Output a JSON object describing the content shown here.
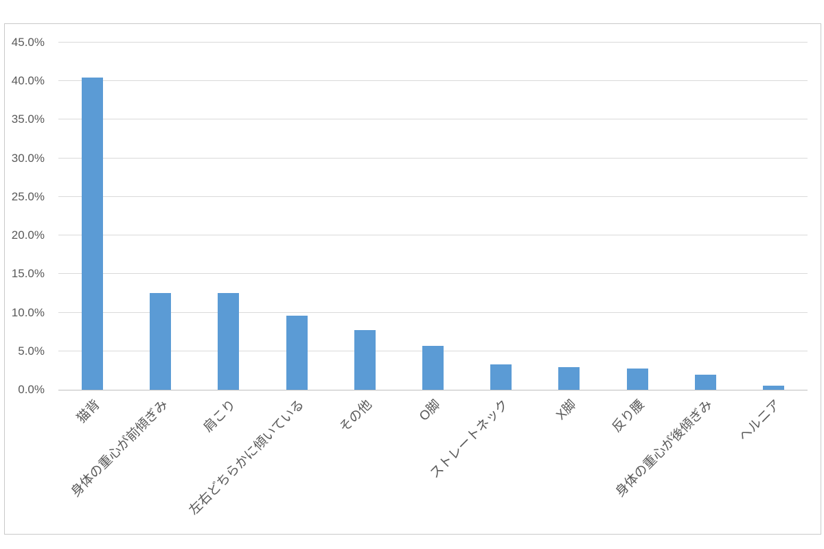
{
  "chart_data": {
    "type": "bar",
    "title": "",
    "xlabel": "",
    "ylabel": "",
    "categories": [
      "猫背",
      "身体の重心が前傾ぎみ",
      "肩こり",
      "左右どちらかに傾いている",
      "その他",
      "O脚",
      "ストレートネック",
      "X脚",
      "反り腰",
      "身体の重心が後傾ぎみ",
      "ヘルニア"
    ],
    "values": [
      40.5,
      12.5,
      12.5,
      9.6,
      7.7,
      5.7,
      3.3,
      2.9,
      2.8,
      2.0,
      0.5
    ],
    "value_unit": "%",
    "y_tick_labels": [
      "0.0%",
      "5.0%",
      "10.0%",
      "15.0%",
      "20.0%",
      "25.0%",
      "30.0%",
      "35.0%",
      "40.0%",
      "45.0%"
    ],
    "y_tick_values": [
      0,
      5,
      10,
      15,
      20,
      25,
      30,
      35,
      40,
      45
    ],
    "ylim": [
      0,
      45
    ],
    "grid": true,
    "legend": false,
    "x_label_rotation_deg": 45,
    "colors": {
      "bar": "#5B9BD5",
      "gridline": "#D9D9D9",
      "axis_line": "#BFBFBF",
      "tick_label": "#595959",
      "chart_border": "#C9C9C9",
      "background": "#FFFFFF"
    }
  }
}
